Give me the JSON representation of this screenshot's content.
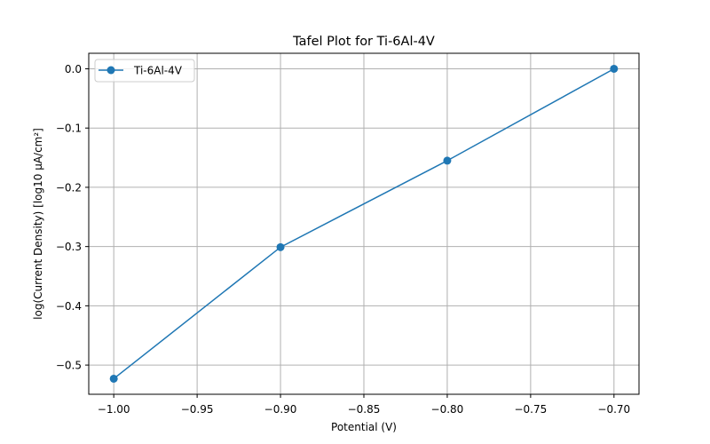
{
  "chart_data": {
    "type": "line",
    "title": "Tafel Plot for Ti-6Al-4V",
    "xlabel": "Potential (V)",
    "ylabel": "log(Current Density) [log10 µA/cm²]",
    "xlim": [
      -1.015,
      -0.685
    ],
    "ylim": [
      -0.5493,
      0.0262
    ],
    "xticks": [
      -1.0,
      -0.95,
      -0.9,
      -0.85,
      -0.8,
      -0.75,
      -0.7
    ],
    "xtick_labels": [
      "−1.00",
      "−0.95",
      "−0.90",
      "−0.85",
      "−0.80",
      "−0.75",
      "−0.70"
    ],
    "yticks": [
      0.0,
      -0.1,
      -0.2,
      -0.3,
      -0.4,
      -0.5
    ],
    "ytick_labels": [
      "0.0",
      "−0.1",
      "−0.2",
      "−0.3",
      "−0.4",
      "−0.5"
    ],
    "grid": true,
    "legend_position": "upper-left",
    "series": [
      {
        "name": "Ti-6Al-4V",
        "color": "#1f77b4",
        "marker": "circle",
        "x": [
          -1.0,
          -0.9,
          -0.8,
          -0.7
        ],
        "y": [
          -0.523,
          -0.301,
          -0.155,
          0.0
        ]
      }
    ]
  }
}
